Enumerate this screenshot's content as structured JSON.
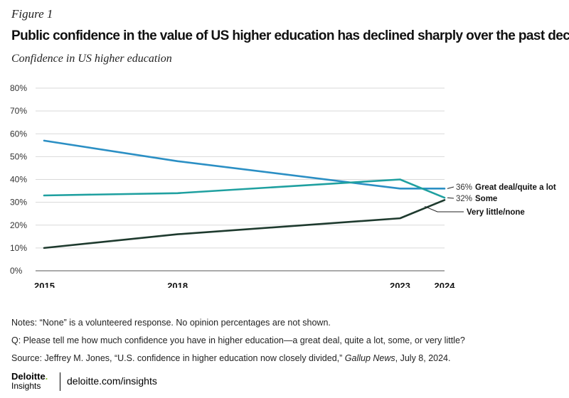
{
  "figure_label": "Figure 1",
  "title": "Public confidence in the value of US higher education has declined sharply over the past decade",
  "subtitle": "Confidence in US higher education",
  "notes": {
    "line1": "Notes: “None” is a volunteered response. No opinion percentages are not shown.",
    "line2": "Q: Please tell me how much confidence you have in higher education—a great deal, quite a lot, some, or very little?",
    "line3_prefix": "Source: Jeffrey M. Jones, “U.S. confidence in higher education now closely divided,”",
    "line3_pub": "Gallup News",
    "line3_suffix": ", July 8, 2024."
  },
  "footer": {
    "logo": "Deloitte",
    "logo_dot": ".",
    "insights": "Insights",
    "url": "deloitte.com/insights"
  },
  "colors": {
    "great_deal": "#2b8fc4",
    "some": "#1fa0a0",
    "very_little": "#1e3a2e",
    "grid": "#d9d9d9",
    "axis": "#555555"
  },
  "chart_data": {
    "type": "line",
    "x": [
      2015,
      2018,
      2023,
      2024
    ],
    "x_tick_labels": [
      "2015",
      "2018",
      "2023",
      "2024"
    ],
    "ylim": [
      0,
      80
    ],
    "y_ticks": [
      0,
      10,
      20,
      30,
      40,
      50,
      60,
      70,
      80
    ],
    "y_tick_labels": [
      "0%",
      "10%",
      "20%",
      "30%",
      "40%",
      "50%",
      "60%",
      "70%",
      "80%"
    ],
    "grid": true,
    "series": [
      {
        "key": "great_deal",
        "name": "Great deal/quite a lot",
        "values": [
          57,
          48,
          36,
          36
        ],
        "end_label": "36%"
      },
      {
        "key": "some",
        "name": "Some",
        "values": [
          33,
          34,
          40,
          32
        ],
        "end_label": "32%"
      },
      {
        "key": "very_little",
        "name": "Very little/none",
        "values": [
          10,
          16,
          23,
          31
        ],
        "end_label": ""
      }
    ]
  }
}
